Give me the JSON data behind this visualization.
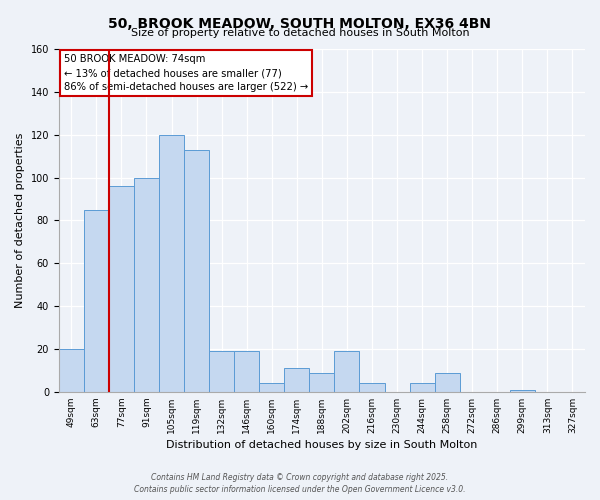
{
  "title": "50, BROOK MEADOW, SOUTH MOLTON, EX36 4BN",
  "subtitle": "Size of property relative to detached houses in South Molton",
  "xlabel": "Distribution of detached houses by size in South Molton",
  "ylabel": "Number of detached properties",
  "bar_labels": [
    "49sqm",
    "63sqm",
    "77sqm",
    "91sqm",
    "105sqm",
    "119sqm",
    "132sqm",
    "146sqm",
    "160sqm",
    "174sqm",
    "188sqm",
    "202sqm",
    "216sqm",
    "230sqm",
    "244sqm",
    "258sqm",
    "272sqm",
    "286sqm",
    "299sqm",
    "313sqm",
    "327sqm"
  ],
  "bar_values": [
    20,
    85,
    96,
    100,
    120,
    113,
    19,
    19,
    4,
    11,
    9,
    19,
    4,
    0,
    4,
    9,
    0,
    0,
    1,
    0,
    0
  ],
  "bar_color": "#c5d8f0",
  "bar_edge_color": "#5b9bd5",
  "vline_color": "#cc0000",
  "annotation_title": "50 BROOK MEADOW: 74sqm",
  "annotation_line1": "← 13% of detached houses are smaller (77)",
  "annotation_line2": "86% of semi-detached houses are larger (522) →",
  "annotation_box_color": "#ffffff",
  "annotation_box_edge": "#cc0000",
  "ylim": [
    0,
    160
  ],
  "yticks": [
    0,
    20,
    40,
    60,
    80,
    100,
    120,
    140,
    160
  ],
  "footer1": "Contains HM Land Registry data © Crown copyright and database right 2025.",
  "footer2": "Contains public sector information licensed under the Open Government Licence v3.0.",
  "background_color": "#eef2f8"
}
